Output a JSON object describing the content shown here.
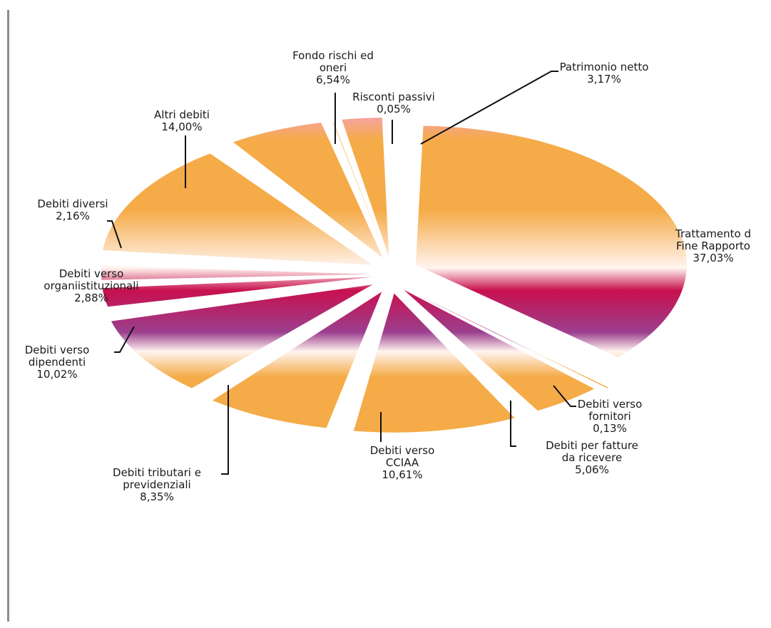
{
  "colors": {
    "slice_top": "#f6a2ac",
    "slice_orange": "#f5ab48",
    "slice_light": "#fff4ef",
    "slice_crimson": "#c8104e",
    "slice_purple": "#9b3f8e",
    "frame_line": "#8c8c8c",
    "leader": "#111111"
  },
  "chart_data": {
    "type": "pie",
    "title": "",
    "legend": "none",
    "exploded": true,
    "slices": [
      {
        "label": "Trattamento di Fine Rapporto",
        "label_lines": [
          "Trattamento d",
          "Fine Rapporto",
          "37,03%"
        ],
        "value": 37.03,
        "percent_label": "37,03%"
      },
      {
        "label": "Debiti verso fornitori",
        "label_lines": [
          "Debiti verso",
          "fornitori",
          "0,13%"
        ],
        "value": 0.13,
        "percent_label": "0,13%"
      },
      {
        "label": "Debiti per fatture da ricevere",
        "label_lines": [
          "Debiti per fatture",
          "da ricevere",
          "5,06%"
        ],
        "value": 5.06,
        "percent_label": "5,06%"
      },
      {
        "label": "Debiti verso CCIAA",
        "label_lines": [
          "Debiti verso",
          "CCIAA",
          "10,61%"
        ],
        "value": 10.61,
        "percent_label": "10,61%"
      },
      {
        "label": "Debiti tributari e previdenziali",
        "label_lines": [
          "Debiti tributari e",
          "previdenziali",
          "8,35%"
        ],
        "value": 8.35,
        "percent_label": "8,35%"
      },
      {
        "label": "Debiti verso dipendenti",
        "label_lines": [
          "Debiti verso",
          "dipendenti",
          "10,02%"
        ],
        "value": 10.02,
        "percent_label": "10,02%"
      },
      {
        "label": "Debiti verso organiistituzionali",
        "label_lines": [
          "Debiti verso",
          "organiistituzionali",
          "2,88%"
        ],
        "value": 2.88,
        "percent_label": "2,88%"
      },
      {
        "label": "Debiti diversi",
        "label_lines": [
          "Debiti diversi",
          "2,16%"
        ],
        "value": 2.16,
        "percent_label": "2,16%"
      },
      {
        "label": "Altri debiti",
        "label_lines": [
          "Altri debiti",
          "14,00%"
        ],
        "value": 14.0,
        "percent_label": "14,00%"
      },
      {
        "label": "Fondo rischi ed oneri",
        "label_lines": [
          "Fondo rischi ed",
          "oneri",
          "6,54%"
        ],
        "value": 6.54,
        "percent_label": "6,54%"
      },
      {
        "label": "Risconti passivi",
        "label_lines": [
          "Risconti passivi",
          "0,05%"
        ],
        "value": 0.05,
        "percent_label": "0,05%"
      },
      {
        "label": "Patrimonio netto",
        "label_lines": [
          "Patrimonio netto",
          "3,17%"
        ],
        "value": 3.17,
        "percent_label": "3,17%"
      }
    ]
  }
}
